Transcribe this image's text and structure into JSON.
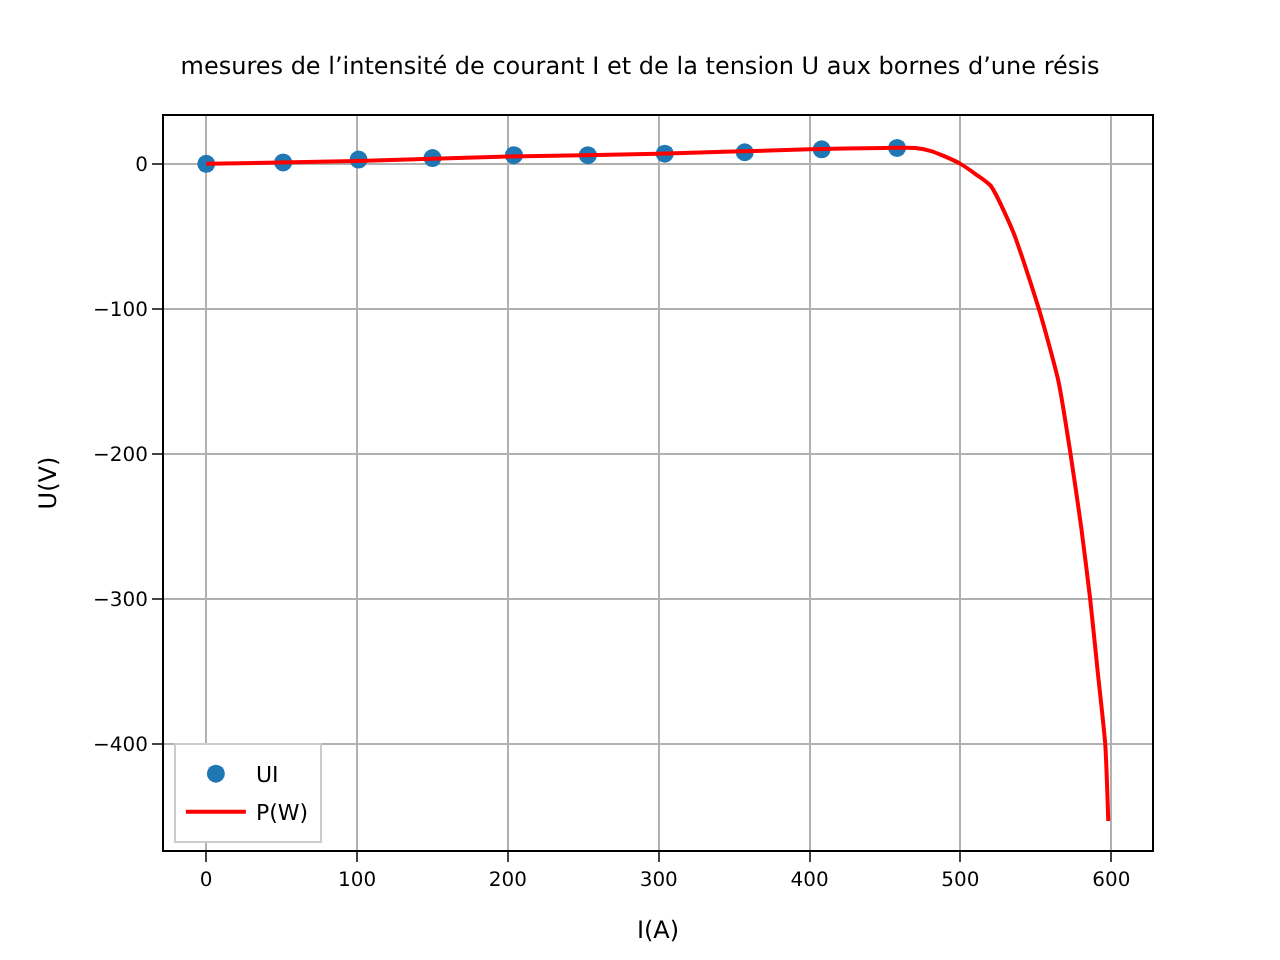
{
  "chart_data": {
    "type": "scatter",
    "title": "mesures de l’intensité de courant I et de la tension U aux bornes d’une résis",
    "xlabel": "I(A)",
    "ylabel": "U(V)",
    "xlim": [
      -28,
      627
    ],
    "ylim": [
      -473,
      33
    ],
    "xticks": [
      0,
      100,
      200,
      300,
      400,
      500,
      600
    ],
    "yticks": [
      -400,
      -300,
      -200,
      -100,
      0
    ],
    "grid": true,
    "legend": "bottom left",
    "series": [
      {
        "name": "UI",
        "marker": "circle",
        "color": "#1f77b4",
        "x": [
          0,
          51,
          101,
          150,
          204,
          253,
          304,
          357,
          408,
          458
        ],
        "values": [
          0,
          1,
          3,
          4,
          6,
          6,
          7,
          8,
          10,
          11
        ]
      },
      {
        "name": "P(W)",
        "type": "line",
        "marker": "none",
        "line_style": "solid",
        "color": "#ff0000",
        "x": [
          0,
          100,
          200,
          300,
          400,
          450,
          470,
          480,
          490,
          500,
          510,
          520,
          535,
          552,
          565,
          573,
          580,
          586,
          591,
          596,
          598
        ],
        "values": [
          0,
          2,
          5,
          7,
          10,
          11,
          11,
          9,
          5,
          0,
          -7,
          -15,
          -47,
          -100,
          -150,
          -200,
          -250,
          -300,
          -350,
          -400,
          -453
        ]
      }
    ]
  }
}
